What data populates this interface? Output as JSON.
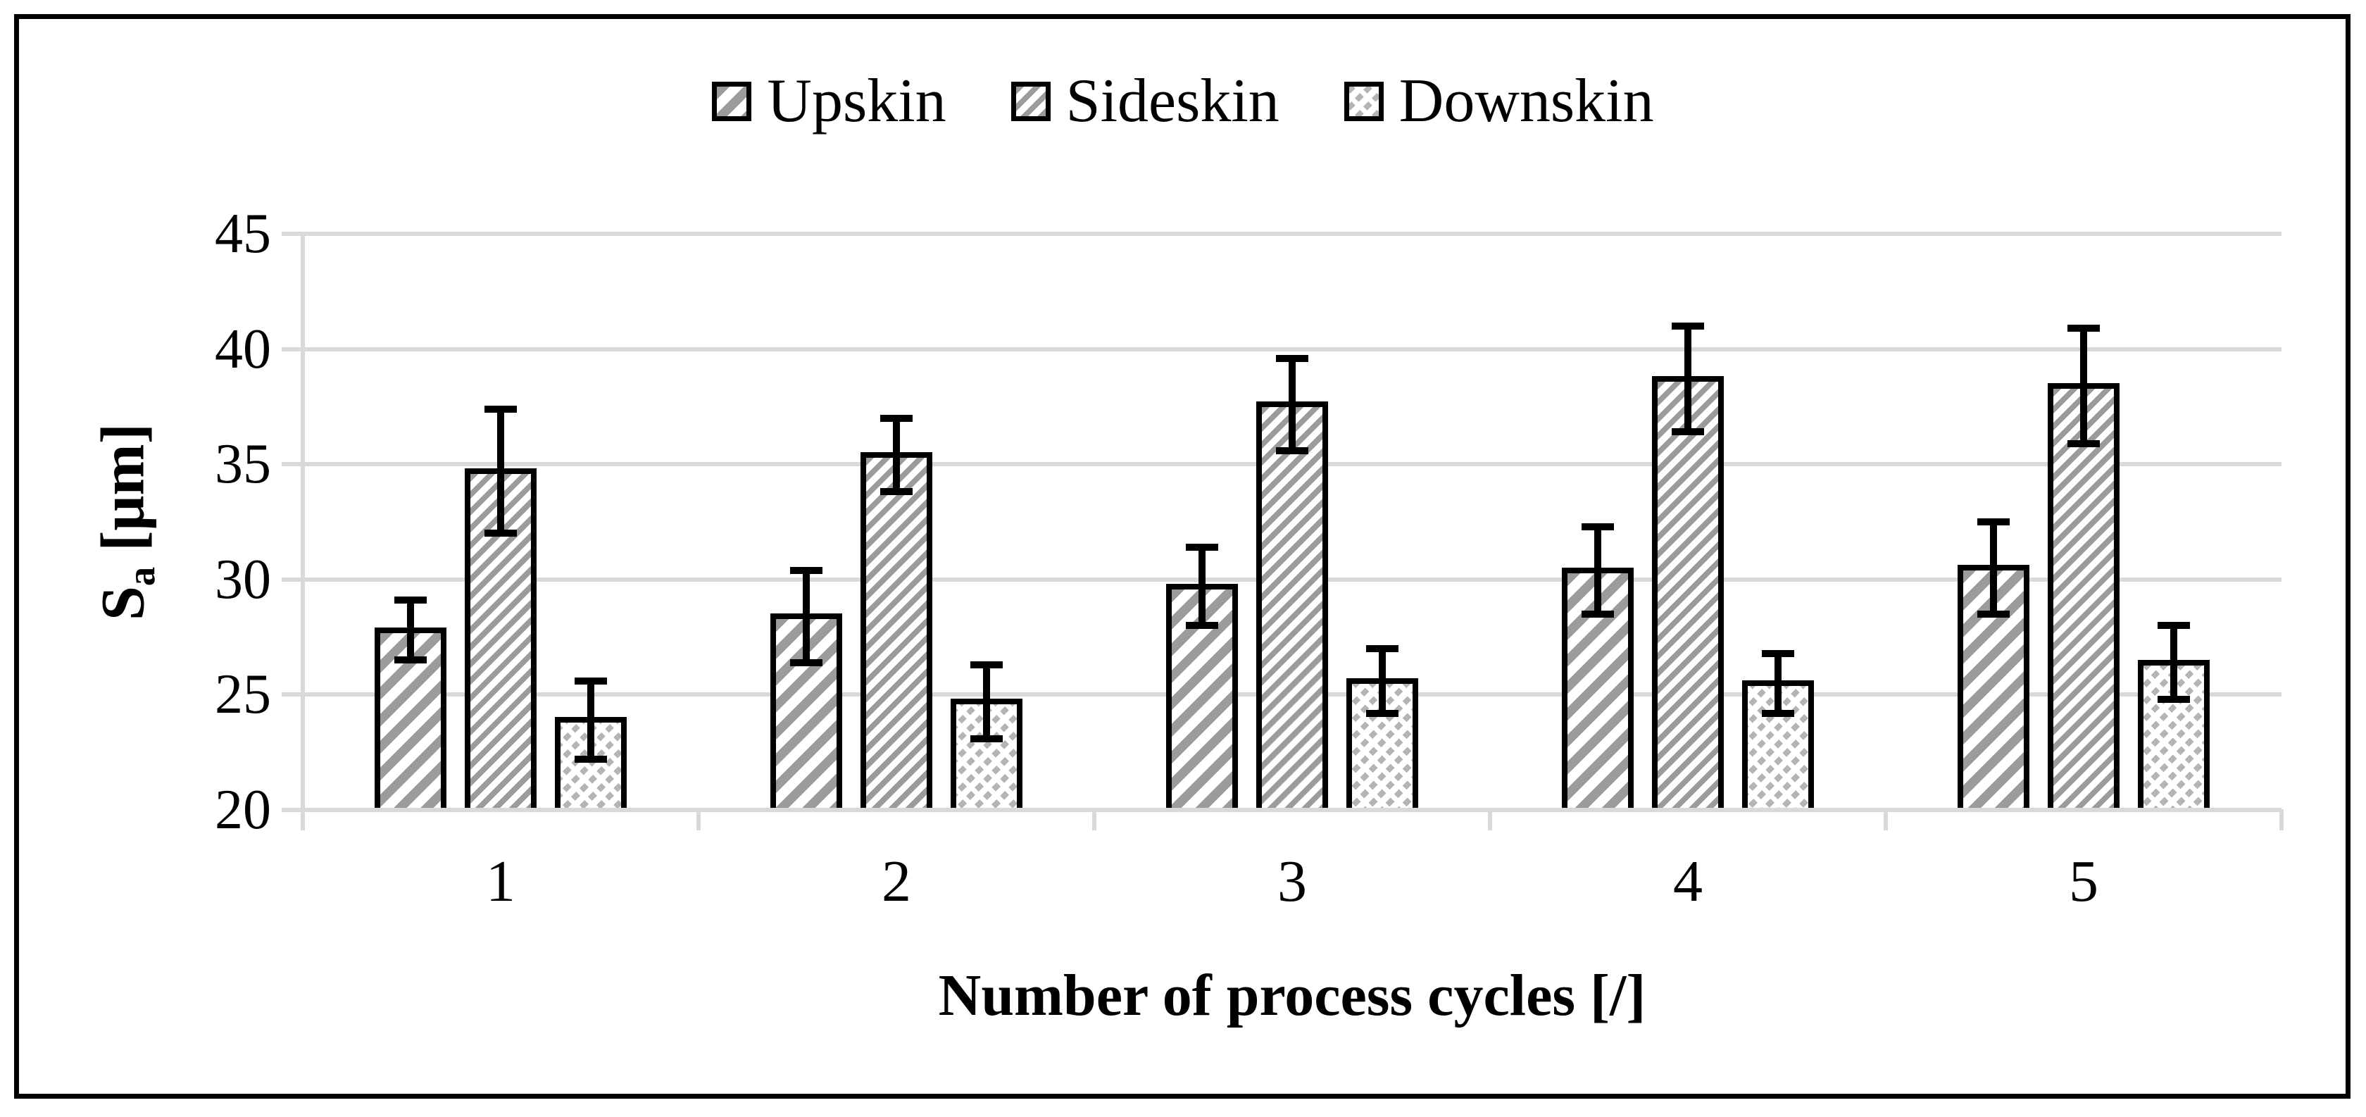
{
  "figure": {
    "background": "#ffffff",
    "border_color": "#000000"
  },
  "legend": {
    "position": "top-center",
    "items": [
      {
        "label": "Upskin",
        "pattern": "wide-diagonal-hatch",
        "swatch_hatch_color": "#9b9b9b"
      },
      {
        "label": "Sideskin",
        "pattern": "medium-diagonal-hatch",
        "swatch_hatch_color": "#9b9b9b"
      },
      {
        "label": "Downskin",
        "pattern": "dashed-diagonal-hatch",
        "swatch_hatch_color": "#b4b4b4"
      }
    ]
  },
  "y_axis": {
    "title_main": "S",
    "title_sub": "a",
    "title_unit": " [μm]",
    "ticks": [
      20,
      25,
      30,
      35,
      40,
      45
    ],
    "range": [
      20,
      45
    ]
  },
  "x_axis": {
    "title": "Number of process cycles [/]",
    "categories": [
      "1",
      "2",
      "3",
      "4",
      "5"
    ]
  },
  "chart_data": {
    "type": "bar",
    "title": "",
    "xlabel": "Number of process cycles [/]",
    "ylabel": "Sa [μm]",
    "ylim": [
      20,
      45
    ],
    "ytick_step": 5,
    "grid": "horizontal",
    "grid_color": "#d9d9d9",
    "legend_position": "top",
    "error_bars": true,
    "categories": [
      1,
      2,
      3,
      4,
      5
    ],
    "series": [
      {
        "name": "Upskin",
        "pattern": "wide-diagonal-hatch",
        "hatch_color": "#9b9b9b",
        "values": [
          27.8,
          28.4,
          29.7,
          30.4,
          30.5
        ],
        "errors": [
          1.3,
          2.0,
          1.7,
          1.9,
          2.0
        ]
      },
      {
        "name": "Sideskin",
        "pattern": "medium-diagonal-hatch",
        "hatch_color": "#9b9b9b",
        "values": [
          34.7,
          35.4,
          37.6,
          38.7,
          38.4
        ],
        "errors": [
          2.7,
          1.6,
          2.0,
          2.3,
          2.5
        ]
      },
      {
        "name": "Downskin",
        "pattern": "dashed-diagonal-hatch",
        "hatch_color": "#b4b4b4",
        "values": [
          23.9,
          24.7,
          25.6,
          25.5,
          26.4
        ],
        "errors": [
          1.7,
          1.6,
          1.4,
          1.3,
          1.6
        ]
      }
    ]
  },
  "colors": {
    "bar_border": "#000000",
    "error_bar": "#000000",
    "gridline": "#d9d9d9",
    "axis_line": "#d9d9d9",
    "text": "#000000"
  }
}
